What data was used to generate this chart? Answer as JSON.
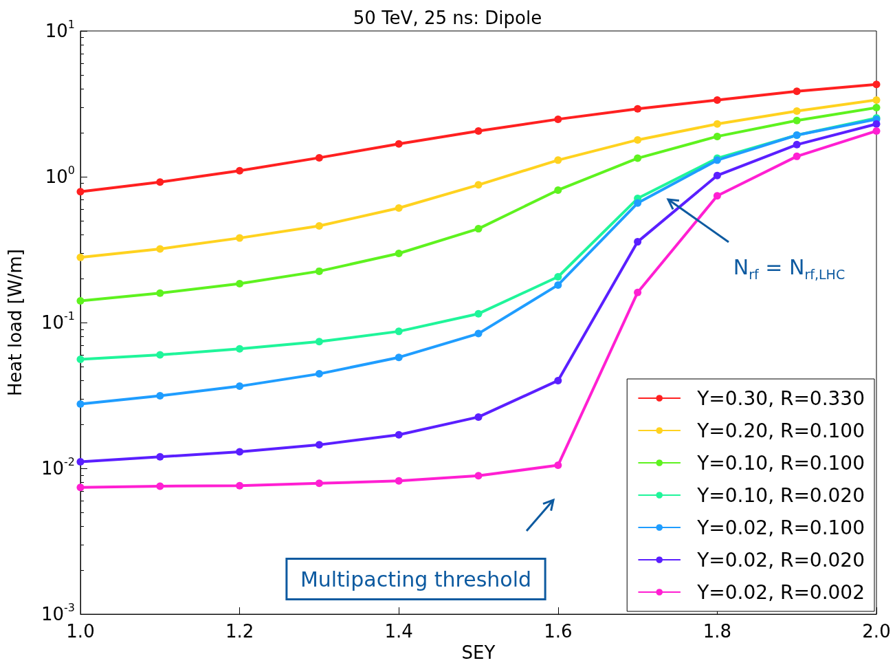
{
  "chart_data": {
    "type": "line",
    "title": "50 TeV, 25 ns: Dipole",
    "xlabel": "SEY",
    "ylabel": "Heat load [W/m]",
    "x": [
      1.0,
      1.1,
      1.2,
      1.3,
      1.4,
      1.5,
      1.6,
      1.7,
      1.8,
      1.9,
      2.0
    ],
    "series": [
      {
        "name": "Y=0.30, R=0.330",
        "color": "#ff2020",
        "values": [
          0.79,
          0.92,
          1.1,
          1.35,
          1.68,
          2.06,
          2.48,
          2.92,
          3.36,
          3.86,
          4.3
        ]
      },
      {
        "name": "Y=0.20, R=0.100",
        "color": "#ffd21f",
        "values": [
          0.28,
          0.32,
          0.38,
          0.46,
          0.61,
          0.88,
          1.3,
          1.79,
          2.3,
          2.82,
          3.36
        ]
      },
      {
        "name": "Y=0.10, R=0.100",
        "color": "#5ef21f",
        "values": [
          0.141,
          0.159,
          0.185,
          0.225,
          0.298,
          0.44,
          0.81,
          1.34,
          1.89,
          2.43,
          2.98
        ]
      },
      {
        "name": "Y=0.10, R=0.020",
        "color": "#1ff59a",
        "values": [
          0.056,
          0.06,
          0.066,
          0.074,
          0.087,
          0.115,
          0.206,
          0.71,
          1.34,
          1.93,
          2.53
        ]
      },
      {
        "name": "Y=0.02, R=0.100",
        "color": "#1f9dff",
        "values": [
          0.0276,
          0.0315,
          0.0366,
          0.0445,
          0.0577,
          0.084,
          0.181,
          0.66,
          1.3,
          1.93,
          2.48
        ]
      },
      {
        "name": "Y=0.02, R=0.020",
        "color": "#5a1fff",
        "values": [
          0.0111,
          0.012,
          0.013,
          0.0145,
          0.017,
          0.0225,
          0.04,
          0.358,
          1.02,
          1.66,
          2.3
        ]
      },
      {
        "name": "Y=0.02, R=0.002",
        "color": "#ff1fd2",
        "values": [
          0.0074,
          0.00755,
          0.0076,
          0.0079,
          0.0082,
          0.0089,
          0.0105,
          0.161,
          0.74,
          1.38,
          2.06
        ]
      }
    ],
    "xlim": [
      1.0,
      2.0
    ],
    "xticks": [
      {
        "value": 1.0,
        "label": "1.0"
      },
      {
        "value": 1.2,
        "label": "1.2"
      },
      {
        "value": 1.4,
        "label": "1.4"
      },
      {
        "value": 1.6,
        "label": "1.6"
      },
      {
        "value": 1.8,
        "label": "1.8"
      },
      {
        "value": 2.0,
        "label": "2.0"
      }
    ],
    "ylim": [
      0.001,
      10
    ],
    "yticks": [
      {
        "value": 0.001,
        "label": "10$^{-3}$"
      },
      {
        "value": 0.01,
        "label": "10$^{-2}$"
      },
      {
        "value": 0.1,
        "label": "10$^{-1}$"
      },
      {
        "value": 1,
        "label": "10$^{0}$"
      },
      {
        "value": 10,
        "label": "10$^{1}$"
      }
    ],
    "log": "y",
    "grid": false,
    "legend": "bottom right",
    "marker": "circle",
    "line_style": "solid",
    "annotations": [
      "Multipacting threshold",
      "N$_{rf}$ = N$_{rf,LHC}$"
    ]
  }
}
